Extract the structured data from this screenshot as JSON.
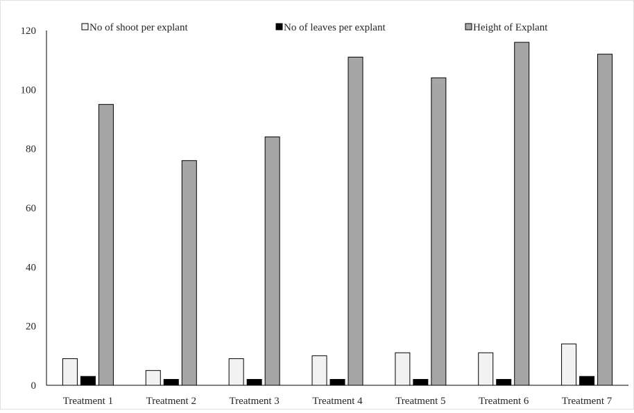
{
  "chart_data": {
    "type": "bar",
    "title": "",
    "xlabel": "",
    "ylabel": "",
    "categories": [
      "Treatment 1",
      "Treatment 2",
      "Treatment 3",
      "Treatment 4",
      "Treatment 5",
      "Treatment 6",
      "Treatment 7"
    ],
    "series": [
      {
        "name": "No of shoot per explant",
        "color": "#f2f2f2",
        "values": [
          9,
          5,
          9,
          10,
          11,
          11,
          14
        ]
      },
      {
        "name": "No of leaves per explant",
        "color": "#000000",
        "values": [
          3,
          2,
          2,
          2,
          2,
          2,
          3
        ]
      },
      {
        "name": "Height of Explant",
        "color": "#a6a6a6",
        "values": [
          95,
          76,
          84,
          111,
          104,
          116,
          112
        ]
      }
    ],
    "ylim": [
      0,
      120
    ],
    "yticks": [
      "0",
      "20",
      "40",
      "60",
      "80",
      "100",
      "120"
    ],
    "grid": false,
    "legend_position": "top"
  }
}
